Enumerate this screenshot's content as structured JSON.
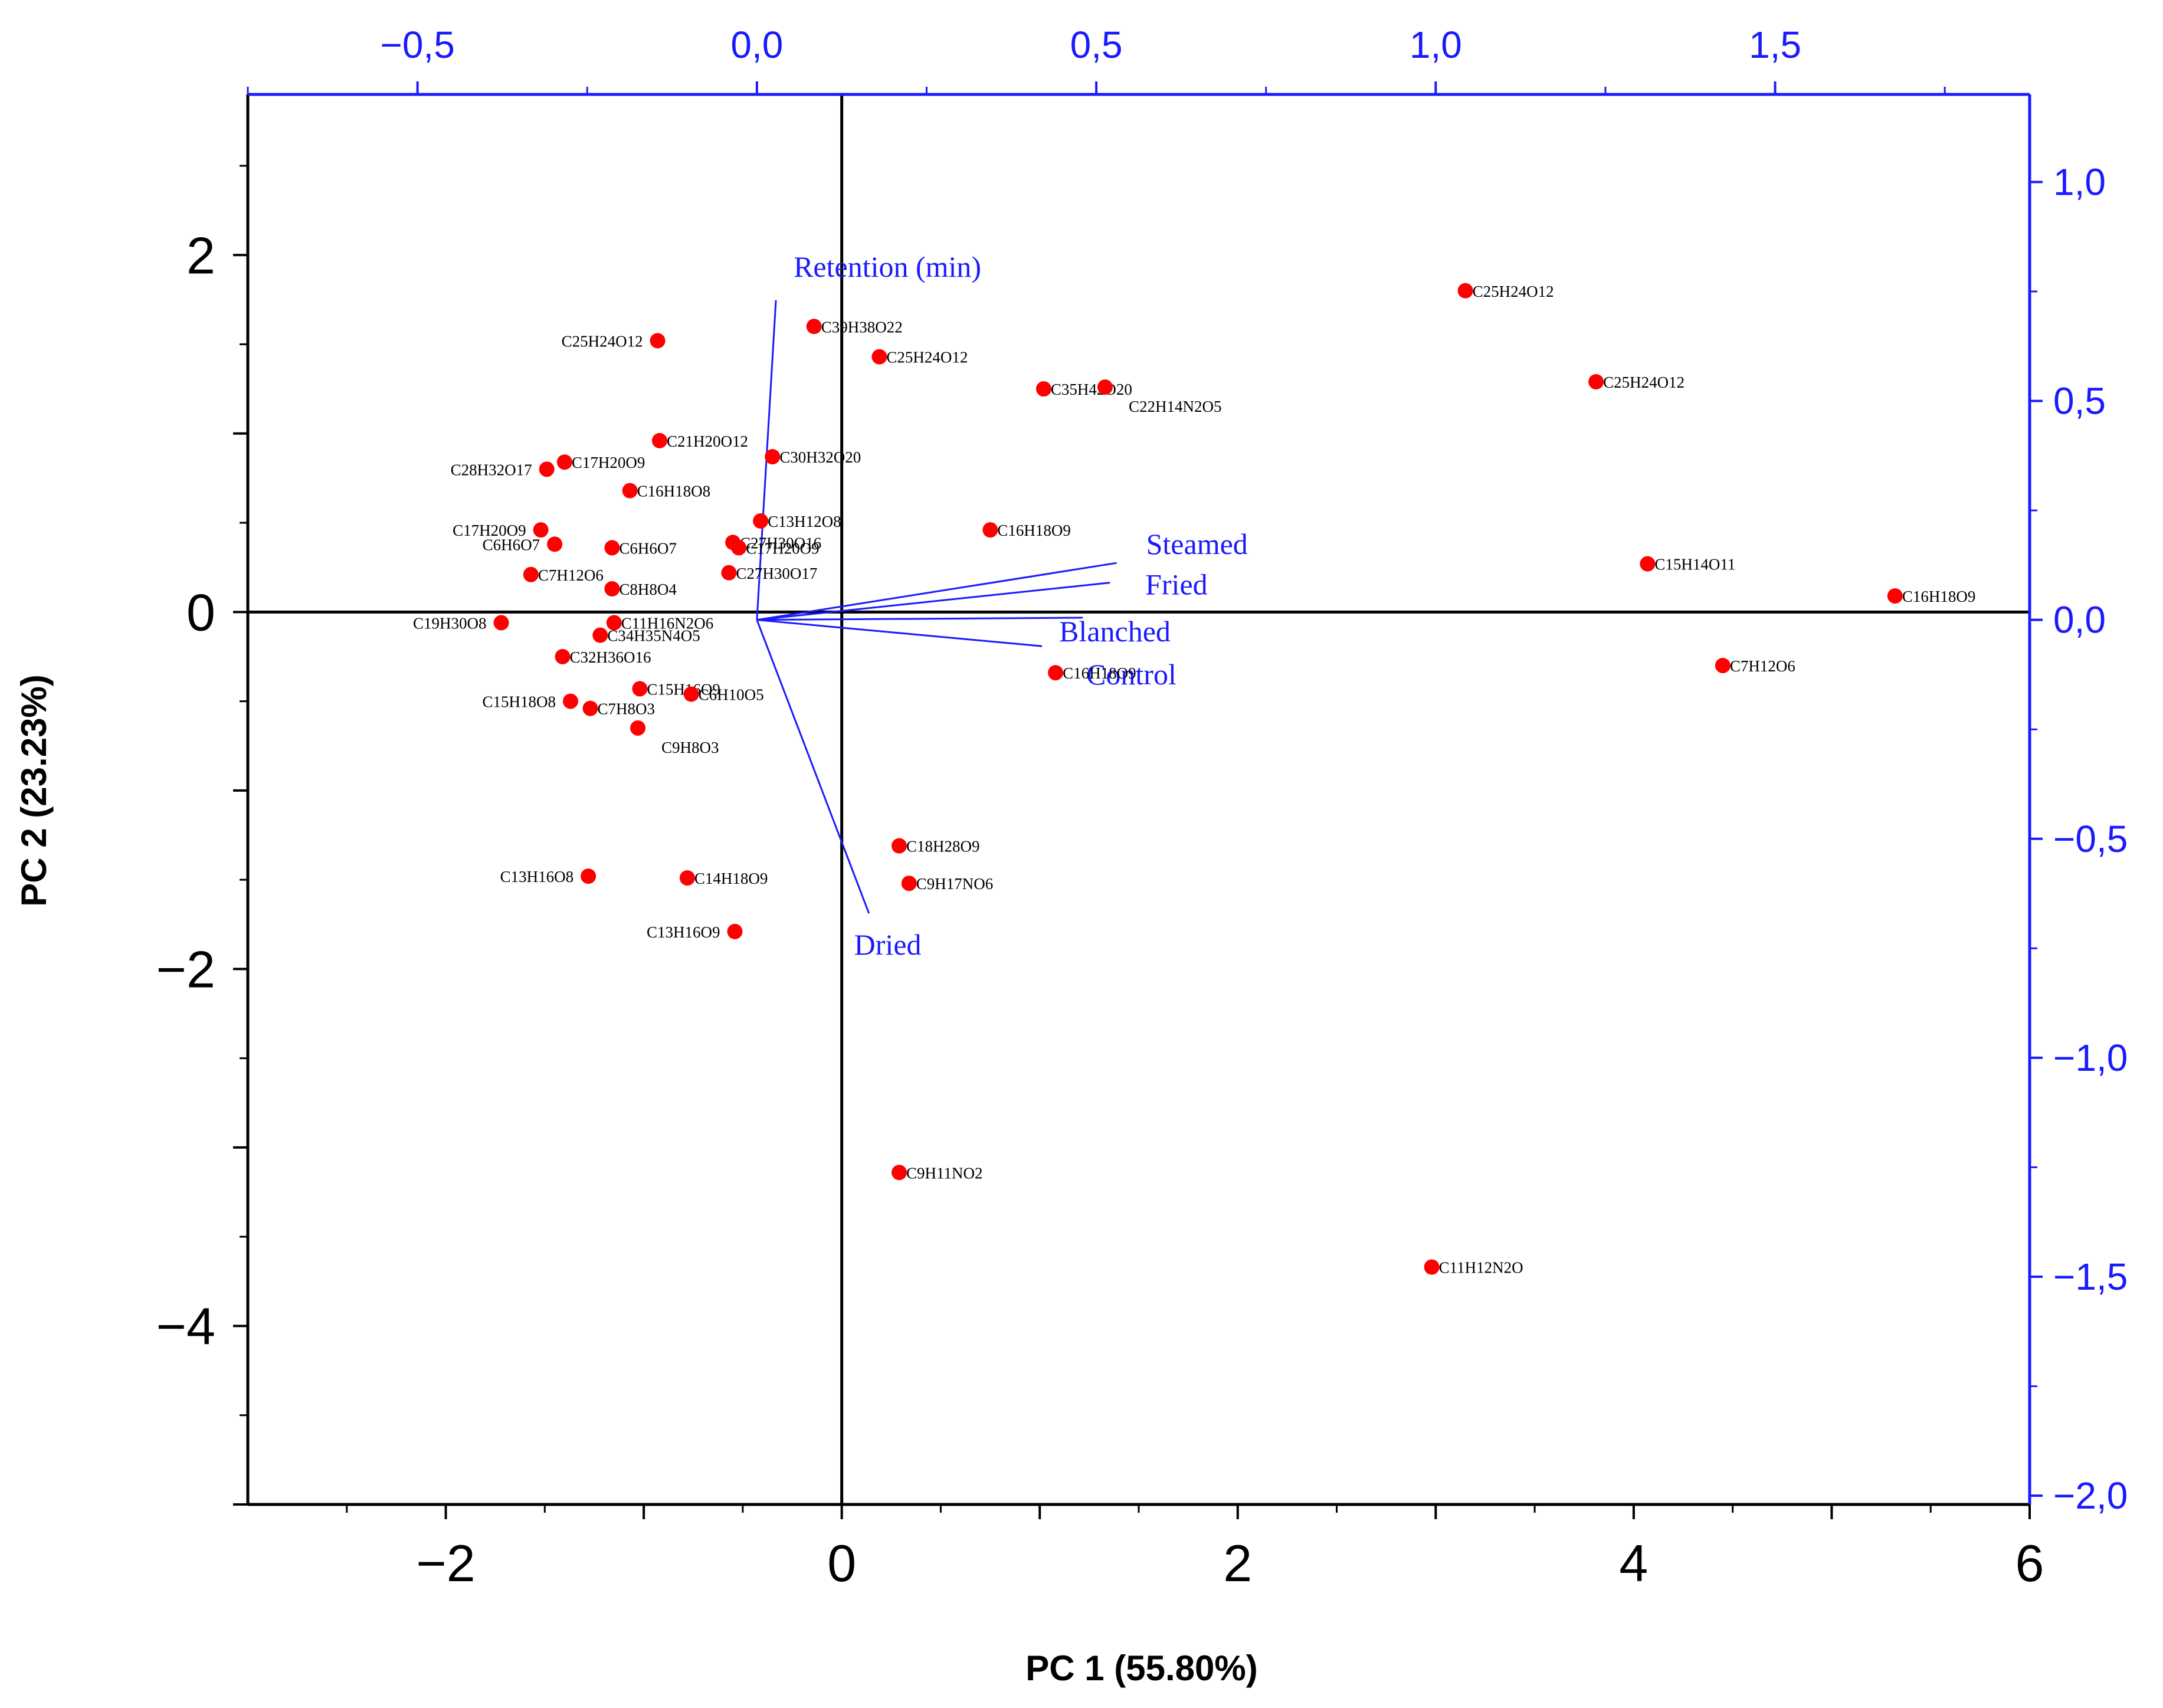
{
  "chart_data": {
    "type": "scatter",
    "subtype": "pca-biplot",
    "xlabel": "PC 1 (55.80%)",
    "ylabel": "PC 2 (23.23%)",
    "xlim": [
      -3,
      6
    ],
    "ylim": [
      -5,
      2.9
    ],
    "x_ticks": [
      "−2",
      "0",
      "2",
      "4",
      "6"
    ],
    "x_tick_values": [
      -2,
      0,
      2,
      4,
      6
    ],
    "y_ticks": [
      "2",
      "0",
      "−2",
      "−4"
    ],
    "y_tick_values": [
      2,
      0,
      -2,
      -4
    ],
    "loading_axes": {
      "xlim": [
        -0.75,
        1.875
      ],
      "ylim": [
        -2.02,
        1.2
      ],
      "top_ticks": [
        "−0,5",
        "0,0",
        "0,5",
        "1,0",
        "1,5"
      ],
      "top_tick_values": [
        -0.5,
        0,
        0.5,
        1.0,
        1.5
      ],
      "right_ticks": [
        "1,0",
        "0,5",
        "0,0",
        "−0,5",
        "−1,0",
        "−1,5",
        "−2,0"
      ],
      "right_tick_values": [
        1.0,
        0.5,
        0.0,
        -0.5,
        -1.0,
        -1.5,
        -2.0
      ]
    },
    "colors": {
      "scores": "#ff0000",
      "loadings": "#1a1aff",
      "axes": "#000000"
    },
    "scores": [
      {
        "label": "C25H24O12",
        "x": 3.15,
        "y": 1.8
      },
      {
        "label": "C25H24O12",
        "x": 3.81,
        "y": 1.29
      },
      {
        "label": "C39H38O22",
        "x": -0.14,
        "y": 1.6
      },
      {
        "label": "C25H24O12",
        "x": 0.19,
        "y": 1.43
      },
      {
        "label": "C25H24O12",
        "x": -0.93,
        "y": 1.52
      },
      {
        "label": "C35H42O20",
        "x": 1.02,
        "y": 1.25
      },
      {
        "label": "C22H14N2O5",
        "x": 1.33,
        "y": 1.26
      },
      {
        "label": "C21H20O12",
        "x": -0.92,
        "y": 0.96
      },
      {
        "label": "C30H32O20",
        "x": -0.35,
        "y": 0.87
      },
      {
        "label": "C28H32O17",
        "x": -1.49,
        "y": 0.8
      },
      {
        "label": "C17H20O9",
        "x": -1.4,
        "y": 0.84
      },
      {
        "label": "C16H18O8",
        "x": -1.07,
        "y": 0.68
      },
      {
        "label": "C13H12O8",
        "x": -0.41,
        "y": 0.51
      },
      {
        "label": "C17H20O9",
        "x": -1.52,
        "y": 0.46
      },
      {
        "label": "C6H6O7",
        "x": -1.45,
        "y": 0.38
      },
      {
        "label": "C27H30O16",
        "x": -0.55,
        "y": 0.39
      },
      {
        "label": "C6H6O7",
        "x": -1.16,
        "y": 0.36
      },
      {
        "label": "C17H20O9",
        "x": -0.52,
        "y": 0.36
      },
      {
        "label": "C16H18O9",
        "x": 0.75,
        "y": 0.46
      },
      {
        "label": "C15H14O11",
        "x": 4.07,
        "y": 0.27
      },
      {
        "label": "C7H12O6",
        "x": -1.57,
        "y": 0.21
      },
      {
        "label": "C27H30O17",
        "x": -0.57,
        "y": 0.22
      },
      {
        "label": "C8H8O4",
        "x": -1.16,
        "y": 0.13
      },
      {
        "label": "C16H18O9",
        "x": 5.32,
        "y": 0.09
      },
      {
        "label": "C19H30O8",
        "x": -1.72,
        "y": -0.06
      },
      {
        "label": "C11H16N2O6",
        "x": -1.15,
        "y": -0.06
      },
      {
        "label": "C34H35N4O5",
        "x": -1.22,
        "y": -0.13
      },
      {
        "label": "C32H36O16",
        "x": -1.41,
        "y": -0.25
      },
      {
        "label": "C7H12O6",
        "x": 4.45,
        "y": -0.3
      },
      {
        "label": "C16H18O9",
        "x": 1.08,
        "y": -0.34
      },
      {
        "label": "C15H16O9",
        "x": -1.02,
        "y": -0.43
      },
      {
        "label": "C6H10O5",
        "x": -0.76,
        "y": -0.46
      },
      {
        "label": "C15H18O8",
        "x": -1.37,
        "y": -0.5
      },
      {
        "label": "C7H8O3",
        "x": -1.27,
        "y": -0.54
      },
      {
        "label": "C9H8O3",
        "x": -1.03,
        "y": -0.65
      },
      {
        "label": "C18H28O9",
        "x": 0.29,
        "y": -1.31
      },
      {
        "label": "C13H16O8",
        "x": -1.28,
        "y": -1.48
      },
      {
        "label": "C14H18O9",
        "x": -0.78,
        "y": -1.49
      },
      {
        "label": "C9H17NO6",
        "x": 0.34,
        "y": -1.52
      },
      {
        "label": "C13H16O9",
        "x": -0.54,
        "y": -1.79
      },
      {
        "label": "C9H11NO2",
        "x": 0.29,
        "y": -3.14
      },
      {
        "label": "C11H12N2O",
        "x": 2.98,
        "y": -3.67
      }
    ],
    "loadings": [
      {
        "label": "Retention (min)",
        "x": 0.028,
        "y": 0.73
      },
      {
        "label": "Steamed",
        "x": 0.53,
        "y": 0.13
      },
      {
        "label": "Fried",
        "x": 0.52,
        "y": 0.085
      },
      {
        "label": "Blanched",
        "x": 0.48,
        "y": 0.005
      },
      {
        "label": "Control",
        "x": 0.42,
        "y": -0.06
      },
      {
        "label": "Dried",
        "x": 0.165,
        "y": -0.67
      }
    ]
  }
}
